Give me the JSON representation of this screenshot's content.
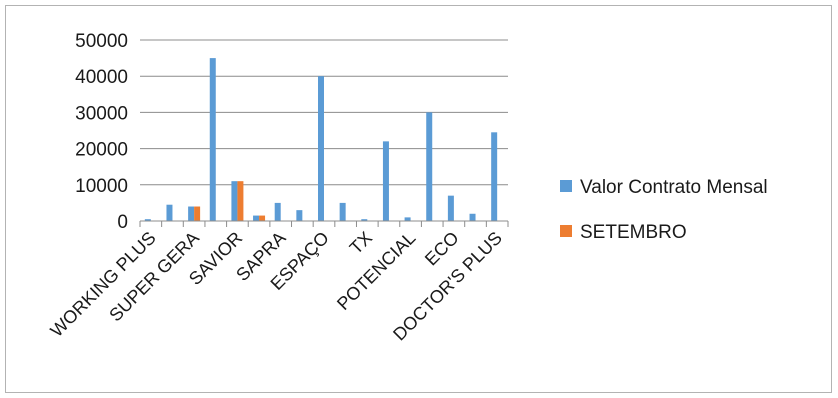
{
  "chart_data": {
    "type": "bar",
    "categories": [
      "WORKING PLUS",
      "",
      "SUPER GERA",
      "",
      "SAVIOR",
      "",
      "SAPRA",
      "",
      "ESPAÇO",
      "",
      "TX",
      "",
      "POTENCIAL",
      "",
      "ECO",
      "",
      "DOCTOR'S PLUS"
    ],
    "series": [
      {
        "name": "Valor Contrato Mensal",
        "color": "#5b9bd5",
        "values": [
          500,
          4500,
          4000,
          45000,
          11000,
          1500,
          5000,
          3000,
          40000,
          5000,
          500,
          22000,
          1000,
          30000,
          7000,
          2000,
          24500
        ]
      },
      {
        "name": "SETEMBRO",
        "color": "#ed7d31",
        "values": [
          0,
          0,
          4000,
          0,
          11000,
          1500,
          0,
          0,
          0,
          0,
          0,
          0,
          0,
          0,
          0,
          0,
          0
        ]
      }
    ],
    "ylim": [
      0,
      50000
    ],
    "yticks": [
      "0",
      "10000",
      "20000",
      "30000",
      "40000",
      "50000"
    ],
    "grid": true,
    "legend_position": "right"
  }
}
